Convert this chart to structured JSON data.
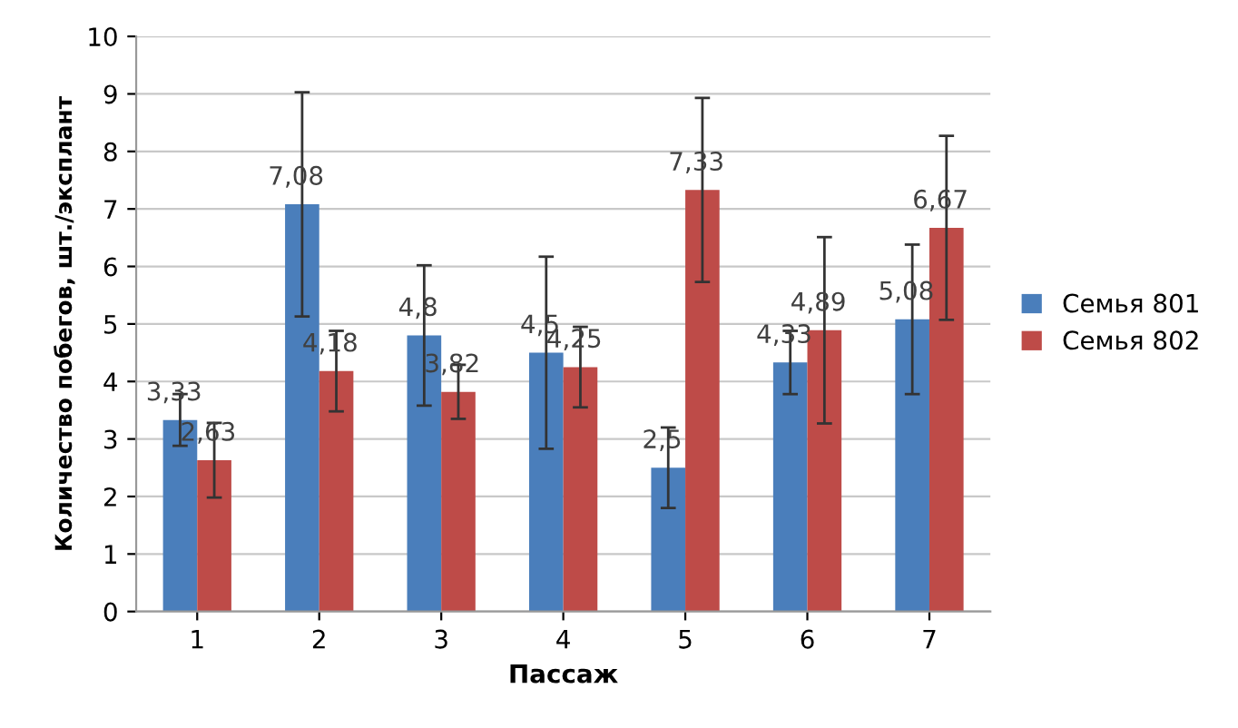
{
  "chart_data": {
    "type": "bar",
    "xlabel": "Пассаж",
    "ylabel": "Количество побегов, шт./эксплант",
    "categories": [
      "1",
      "2",
      "3",
      "4",
      "5",
      "6",
      "7"
    ],
    "series": [
      {
        "name": "Семья 801",
        "color": "#4a7ebb",
        "values": [
          3.33,
          7.08,
          4.8,
          4.5,
          2.5,
          4.33,
          5.08
        ],
        "errors": [
          0.45,
          1.95,
          1.22,
          1.67,
          0.7,
          0.55,
          1.3
        ],
        "value_labels": [
          "3,33",
          "7,08",
          "4,8",
          "4,5",
          "2,5",
          "4,33",
          "5,08"
        ]
      },
      {
        "name": "Семья 802",
        "color": "#be4b48",
        "values": [
          2.63,
          4.18,
          3.82,
          4.25,
          7.33,
          4.89,
          6.67
        ],
        "errors": [
          0.65,
          0.7,
          0.47,
          0.7,
          1.6,
          1.62,
          1.6
        ],
        "value_labels": [
          "2,63",
          "4,18",
          "3,82",
          "4,25",
          "7,33",
          "4,89",
          "6,67"
        ]
      }
    ],
    "ylim": [
      0,
      10
    ],
    "yticks": [
      0,
      1,
      2,
      3,
      4,
      5,
      6,
      7,
      8,
      9,
      10
    ],
    "grid": "y",
    "legend": "right"
  }
}
